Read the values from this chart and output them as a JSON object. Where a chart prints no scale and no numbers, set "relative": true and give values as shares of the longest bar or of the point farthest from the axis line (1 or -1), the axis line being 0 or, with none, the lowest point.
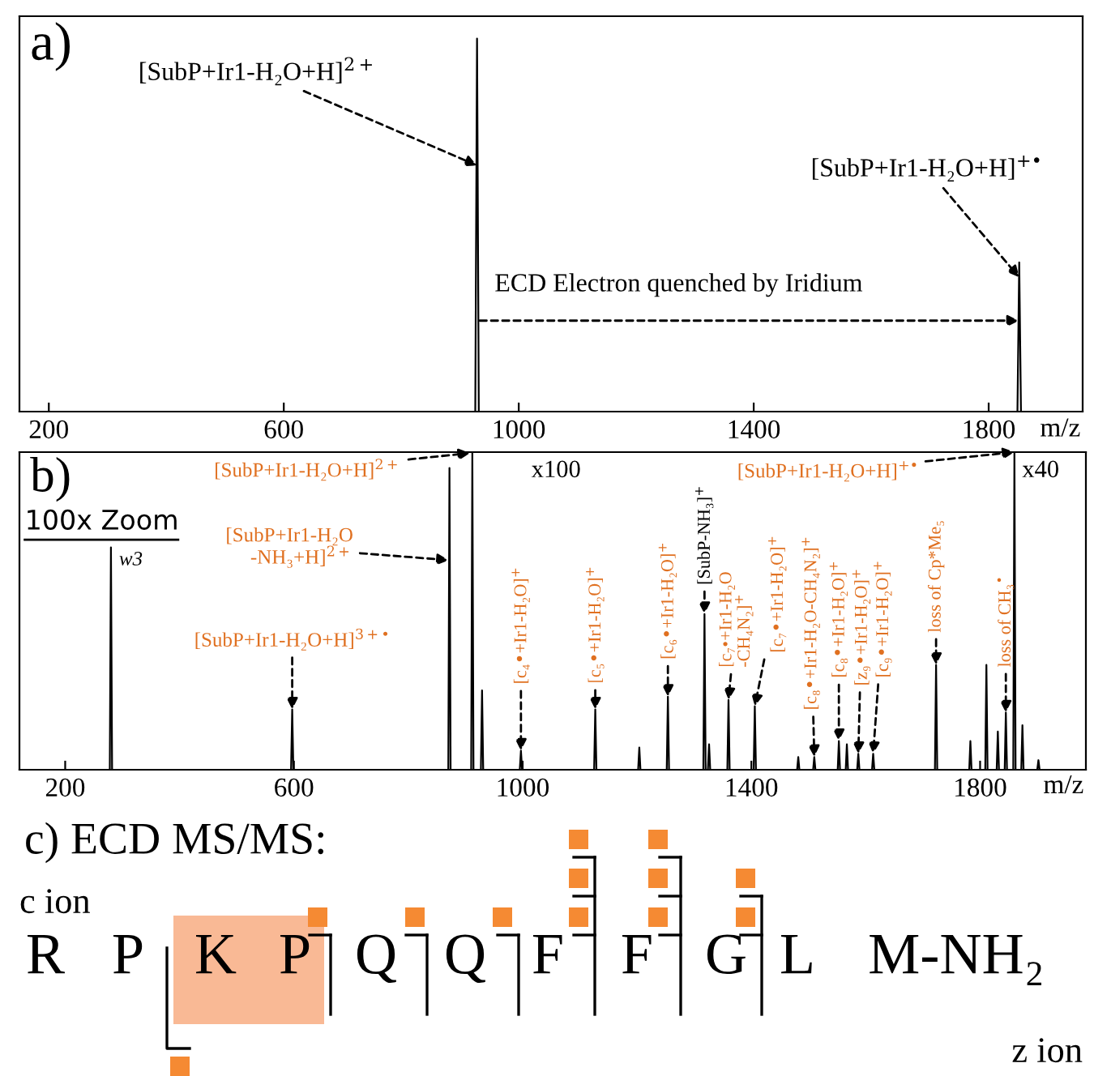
{
  "chart_data": [
    {
      "type": "line",
      "title": "a)",
      "xlabel": "m/z",
      "relative": true,
      "tick_labels": "x",
      "marker": "none",
      "line_style": "solid",
      "x": [
        150,
        926,
        929,
        932,
        1849,
        1852,
        1855,
        1960
      ],
      "series": [
        {
          "color": "#000000",
          "values": [
            0,
            0,
            1,
            0,
            0,
            0.4,
            0,
            0
          ]
        }
      ],
      "xlim": [
        150,
        1960
      ],
      "xticks": [
        200,
        600,
        1000,
        1400,
        1800
      ],
      "annotations": [
        {
          "text": "[SubP+Ir1-H₂O+H]$^{2+}$",
          "x": 929,
          "y": 0.66
        },
        {
          "text": "[SubP+Ir1-H₂O+H]$^{+•}$",
          "x": 1852,
          "y": 0.36
        },
        "ECD Electron quenched by Iridium"
      ]
    },
    {
      "type": "line",
      "title": "b)",
      "xlabel": "m/z",
      "relative": true,
      "tick_labels": "x",
      "marker": "none",
      "line_style": "solid",
      "x": [
        120,
        278,
        280,
        282,
        595,
        597,
        599,
        870,
        872,
        874,
        910,
        912,
        914,
        927,
        929,
        931,
        995,
        997,
        999,
        1125,
        1127,
        1129,
        1202,
        1204,
        1206,
        1252,
        1254,
        1256,
        1316,
        1318,
        1320,
        1324,
        1326,
        1328,
        1358,
        1360,
        1362,
        1404,
        1406,
        1408,
        1480,
        1482,
        1484,
        1508,
        1510,
        1512,
        1551,
        1553,
        1555,
        1565,
        1567,
        1569,
        1585,
        1587,
        1589,
        1611,
        1613,
        1615,
        1721,
        1723,
        1725,
        1781,
        1783,
        1785,
        1809,
        1811,
        1813,
        1829,
        1831,
        1833,
        1843,
        1845,
        1847,
        1858,
        1860,
        1862,
        1872,
        1874,
        1876,
        1900,
        1902,
        1904,
        1985
      ],
      "series": [
        {
          "color": "#000000",
          "values": [
            0,
            0,
            0.7,
            0,
            0,
            0.19,
            0,
            0,
            0.95,
            0,
            0,
            1,
            0,
            0,
            0.25,
            0,
            0,
            0.06,
            0,
            0,
            0.19,
            0,
            0,
            0.07,
            0,
            0,
            0.23,
            0,
            0,
            0.49,
            0,
            0,
            0.08,
            0,
            0,
            0.22,
            0,
            0,
            0.2,
            0,
            0,
            0.04,
            0,
            0,
            0.04,
            0,
            0,
            0.09,
            0,
            0,
            0.08,
            0,
            0,
            0.05,
            0,
            0,
            0.05,
            0,
            0,
            0.33,
            0,
            0,
            0.09,
            0,
            0,
            0.33,
            0,
            0,
            0.12,
            0,
            0,
            0.18,
            0,
            0,
            1,
            0,
            0,
            0.14,
            0,
            0,
            0.03,
            0,
            0
          ]
        }
      ],
      "xlim": [
        120,
        1985
      ],
      "xticks": [
        200,
        600,
        1000,
        1400,
        1800
      ],
      "annotations": [
        "[SubP+Ir1-H₂O+H]$^{2+}$",
        "[SubP+Ir1-H₂O\n-NH₃+H]$^{2+}$",
        {
          "text": "[SubP+Ir1-H₂O+H]$^{3+•}$",
          "x": 597,
          "y": 0.19
        },
        {
          "text": "[c₄•+Ir1-H₂O]$^{+}$",
          "x": 997,
          "y": 0.06
        },
        {
          "text": "[c₅•+Ir1-H₂O]$^{+}$",
          "x": 1127,
          "y": 0.19
        },
        {
          "text": "[c₆•+Ir1-H₂O]$^{+}$",
          "x": 1254,
          "y": 0.23
        },
        {
          "text": "[SubP-NH₃]$^{+}$",
          "x": 1318,
          "y": 0.49
        },
        {
          "text": "[c₇•+Ir1-H₂O\n-CH₄N₂]$^{+}$",
          "x": 1360,
          "y": 0.22
        },
        {
          "text": "[c₇•+Ir1-H₂O]$^{+}$",
          "x": 1406,
          "y": 0.2
        },
        {
          "text": "[c₈•+Ir1-H₂O-CH₄N₂]$^{+}$",
          "x": 1510,
          "y": 0.04
        },
        {
          "text": "[c₈•+Ir1-H₂O]$^{+}$",
          "x": 1553,
          "y": 0.09
        },
        {
          "text": "[z₉•+Ir1-H₂O]$^{+}$",
          "x": 1587,
          "y": 0.05
        },
        {
          "text": "[c₉•+Ir1-H₂O]$^{+}$",
          "x": 1613,
          "y": 0.05
        },
        {
          "text": "loss of Cp*Me₅",
          "x": 1723,
          "y": 0.33
        },
        {
          "text": "loss of CH₃$^{•}$",
          "x": 1845,
          "y": 0.18
        },
        {
          "text": "[SubP+Ir1-H₂O+H]$^{+•}$",
          "x": 1860,
          "y": 1.0
        },
        "x100",
        "x40",
        "100x Zoom",
        {
          "text": "w3",
          "x": 280,
          "y": 0.7
        }
      ]
    },
    {
      "type": "other",
      "title": "c) ECD MS/MS:",
      "annotations": [
        "c ion",
        "R",
        "P",
        "K",
        "P",
        "Q",
        "Q",
        "F",
        "F",
        "G",
        "L",
        "M-NH₂",
        "z ion"
      ]
    }
  ]
}
